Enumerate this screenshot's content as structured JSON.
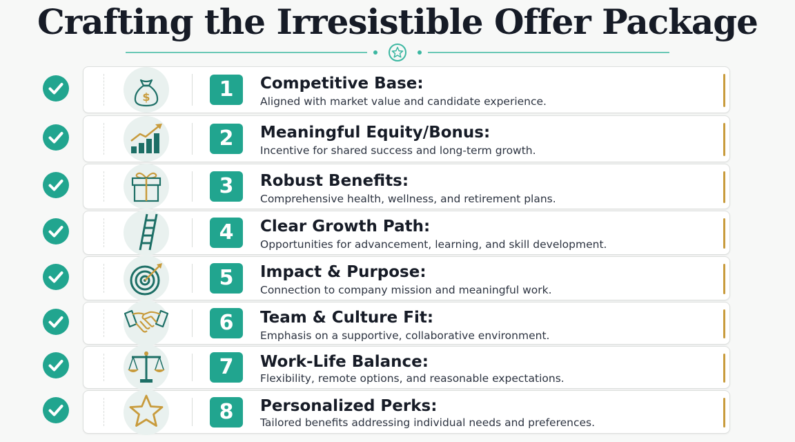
{
  "title": "Crafting the Irresistible Offer Package",
  "colors": {
    "teal": "#21a58f",
    "dark_teal": "#1d6f66",
    "gold": "#c89b3c",
    "accent_line": "#3bb7a1"
  },
  "items": [
    {
      "number": "1",
      "heading": "Competitive Base:",
      "description": "Aligned with market value and candidate experience.",
      "icon": "money-bag-icon"
    },
    {
      "number": "2",
      "heading": "Meaningful Equity/Bonus:",
      "description": "Incentive for shared success and long-term growth.",
      "icon": "growth-chart-icon"
    },
    {
      "number": "3",
      "heading": "Robust Benefits:",
      "description": "Comprehensive health, wellness, and retirement plans.",
      "icon": "gift-icon"
    },
    {
      "number": "4",
      "heading": "Clear Growth Path:",
      "description": "Opportunities for advancement, learning, and skill development.",
      "icon": "ladder-icon"
    },
    {
      "number": "5",
      "heading": "Impact & Purpose:",
      "description": "Connection to company mission and meaningful work.",
      "icon": "target-icon"
    },
    {
      "number": "6",
      "heading": "Team & Culture Fit:",
      "description": "Emphasis on a supportive, collaborative environment.",
      "icon": "handshake-icon"
    },
    {
      "number": "7",
      "heading": "Work-Life Balance:",
      "description": "Flexibility, remote options, and reasonable expectations.",
      "icon": "balance-scale-icon"
    },
    {
      "number": "8",
      "heading": "Personalized Perks:",
      "description": "Tailored benefits addressing individual needs and preferences.",
      "icon": "star-icon"
    }
  ]
}
